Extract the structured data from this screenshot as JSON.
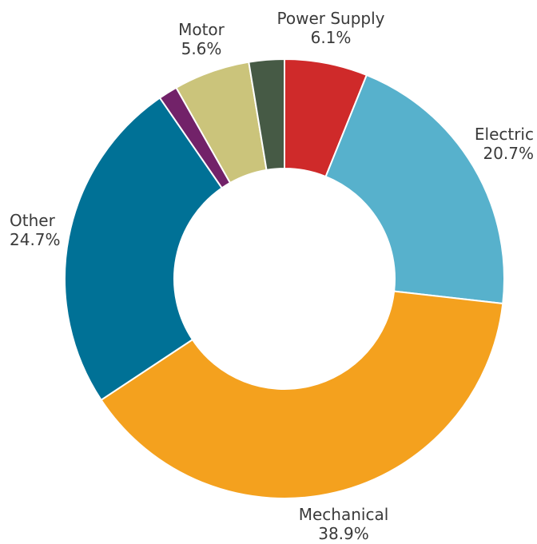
{
  "chart_data": {
    "type": "pie",
    "variant": "donut",
    "title": "",
    "slices": [
      {
        "name": "Power Supply",
        "value": 6.1,
        "label": "6.1%",
        "color": "#cf2a2a",
        "show_label": true
      },
      {
        "name": "Electric",
        "value": 20.7,
        "label": "20.7%",
        "color": "#57b1cc",
        "show_label": true
      },
      {
        "name": "Mechanical",
        "value": 38.9,
        "label": "38.9%",
        "color": "#f4a11e",
        "show_label": true
      },
      {
        "name": "Other",
        "value": 24.7,
        "label": "24.7%",
        "color": "#007196",
        "show_label": true
      },
      {
        "name": "",
        "value": 1.4,
        "label": "",
        "color": "#722269",
        "show_label": false
      },
      {
        "name": "Motor",
        "value": 5.6,
        "label": "5.6%",
        "color": "#cbc47b",
        "show_label": true
      },
      {
        "name": "",
        "value": 2.6,
        "label": "",
        "color": "#465a45",
        "show_label": false
      }
    ],
    "legend": "none",
    "labels_placement": "outside"
  }
}
